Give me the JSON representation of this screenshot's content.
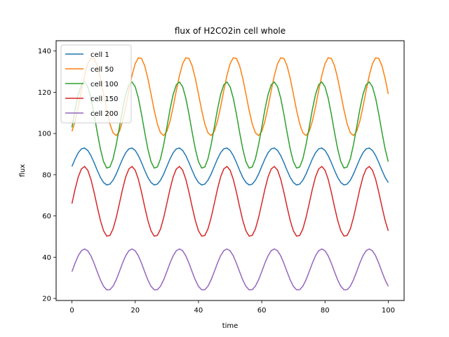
{
  "chart_data": {
    "type": "line",
    "title": "flux of H2CO2in cell whole",
    "xlabel": "time",
    "ylabel": "flux",
    "xlim": [
      -5,
      105
    ],
    "ylim": [
      19,
      145
    ],
    "xticks": [
      0,
      20,
      40,
      60,
      80,
      100
    ],
    "yticks": [
      20,
      40,
      60,
      80,
      100,
      120,
      140
    ],
    "grid": false,
    "legend": "top-left",
    "period": 15,
    "series": [
      {
        "name": "cell 1",
        "color": "#1f77b4",
        "mean": 84,
        "amplitude": 9,
        "start": 84
      },
      {
        "name": "cell 50",
        "color": "#ff7f0e",
        "mean": 118,
        "amplitude": 19,
        "start": 101
      },
      {
        "name": "cell 100",
        "color": "#2ca02c",
        "mean": 104,
        "amplitude": 21,
        "start": 103
      },
      {
        "name": "cell 150",
        "color": "#d62728",
        "mean": 67,
        "amplitude": 17,
        "start": 66
      },
      {
        "name": "cell 200",
        "color": "#9467bd",
        "mean": 34,
        "amplitude": 10,
        "start": 33
      }
    ]
  }
}
